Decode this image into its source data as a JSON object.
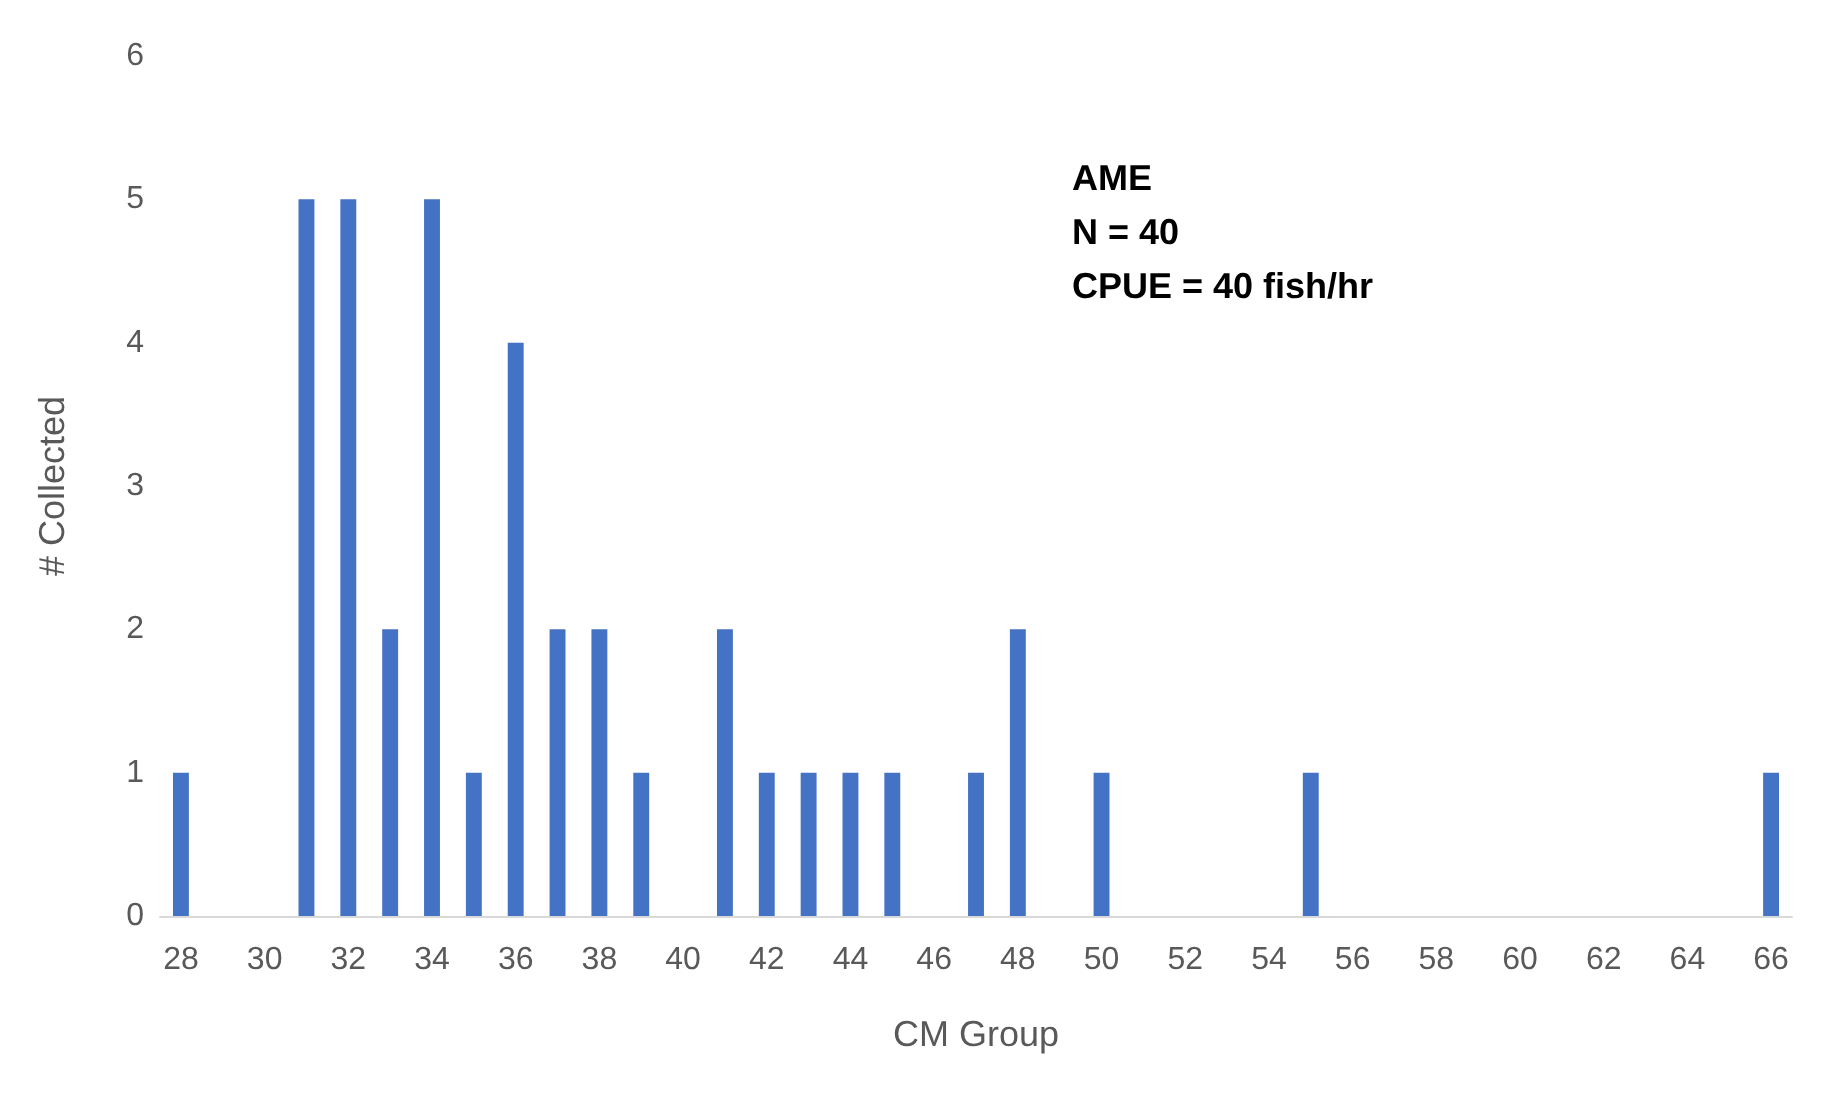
{
  "chart_data": {
    "type": "bar",
    "xlabel": "CM Group",
    "ylabel": "# Collected",
    "annotations": [
      "AME",
      "N = 40",
      "CPUE = 40 fish/hr"
    ],
    "categories": [
      "28",
      null,
      "30",
      null,
      "32",
      null,
      "34",
      null,
      "36",
      null,
      "38",
      null,
      "40",
      null,
      "42",
      null,
      "44",
      null,
      "46",
      null,
      "48",
      null,
      "50",
      null,
      "52",
      null,
      "54",
      null,
      "56",
      null,
      "58",
      null,
      "60",
      null,
      "62",
      null,
      "64",
      null,
      "66"
    ],
    "values": [
      1,
      0,
      0,
      5,
      5,
      2,
      5,
      1,
      4,
      2,
      2,
      1,
      0,
      2,
      1,
      1,
      1,
      1,
      0,
      1,
      2,
      0,
      1,
      0,
      0,
      0,
      0,
      1,
      0,
      0,
      0,
      0,
      0,
      0,
      0,
      0,
      0,
      0,
      1
    ],
    "color": "#4472c4",
    "ylim": [
      0,
      6
    ],
    "yticks": [
      0,
      1,
      2,
      3,
      4,
      5,
      6
    ]
  }
}
